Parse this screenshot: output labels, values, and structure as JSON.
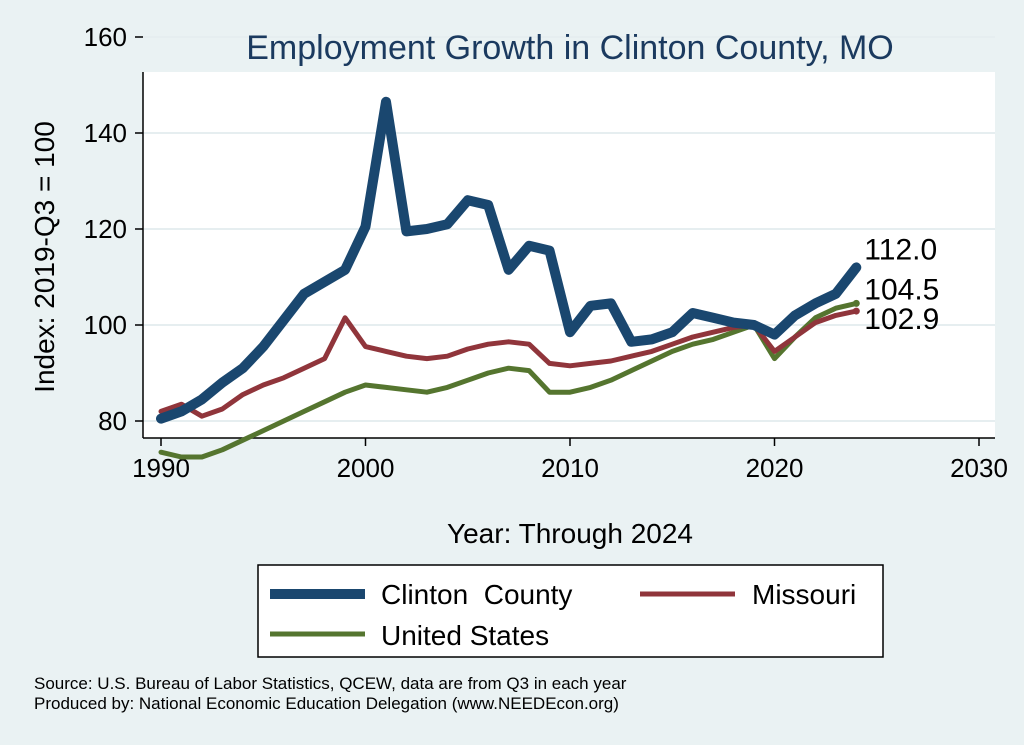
{
  "chart_data": {
    "type": "line",
    "title": "Employment Growth in Clinton County, MO",
    "xlabel": "Year: Through 2024",
    "ylabel": "Index: 2019-Q3 = 100",
    "xlim": [
      1990,
      2030
    ],
    "ylim": [
      70,
      165
    ],
    "x_ticks": [
      1990,
      2000,
      2010,
      2020,
      2030
    ],
    "y_ticks": [
      80,
      100,
      120,
      140,
      160
    ],
    "grid": true,
    "legend_position": "bottom",
    "x": [
      1990,
      1991,
      1992,
      1993,
      1994,
      1995,
      1996,
      1997,
      1998,
      1999,
      2000,
      2001,
      2002,
      2003,
      2004,
      2005,
      2006,
      2007,
      2008,
      2009,
      2010,
      2011,
      2012,
      2013,
      2014,
      2015,
      2016,
      2017,
      2018,
      2019,
      2020,
      2021,
      2022,
      2023,
      2024
    ],
    "series": [
      {
        "name": "Clinton  County",
        "color": "#1a476f",
        "end_label": "112.0",
        "values": [
          80.5,
          82.0,
          84.5,
          88.0,
          91.0,
          95.5,
          101.0,
          106.5,
          109.0,
          111.5,
          120.5,
          146.5,
          119.5,
          120.0,
          121.0,
          126.0,
          125.0,
          111.5,
          116.5,
          115.5,
          98.5,
          104.0,
          104.5,
          96.5,
          97.0,
          98.5,
          102.5,
          101.5,
          100.5,
          100.0,
          98.0,
          102.0,
          104.5,
          106.5,
          112.0
        ]
      },
      {
        "name": "Missouri",
        "color": "#90353b",
        "end_label": "102.9",
        "values": [
          82.0,
          83.5,
          81.0,
          82.5,
          85.5,
          87.5,
          89.0,
          91.0,
          93.0,
          101.5,
          95.5,
          94.5,
          93.5,
          93.0,
          93.5,
          95.0,
          96.0,
          96.5,
          96.0,
          92.0,
          91.5,
          92.0,
          92.5,
          93.5,
          94.5,
          96.0,
          97.5,
          98.5,
          99.5,
          100.0,
          94.5,
          97.5,
          100.5,
          102.0,
          102.9
        ]
      },
      {
        "name": "United States",
        "color": "#55752f",
        "end_label": "104.5",
        "values": [
          73.5,
          72.5,
          72.5,
          74.0,
          76.0,
          78.0,
          80.0,
          82.0,
          84.0,
          86.0,
          87.5,
          87.0,
          86.5,
          86.0,
          87.0,
          88.5,
          90.0,
          91.0,
          90.5,
          86.0,
          86.0,
          87.0,
          88.5,
          90.5,
          92.5,
          94.5,
          96.0,
          97.0,
          98.5,
          100.0,
          93.0,
          97.5,
          101.5,
          103.5,
          104.5
        ]
      }
    ],
    "legend_entries": [
      "Clinton  County",
      "Missouri",
      "United States"
    ],
    "source_lines": [
      "Source: U.S. Bureau of Labor Statistics, QCEW, data are from Q3 in each year",
      "Produced by: National Economic Education Delegation (www.NEEDEcon.org)"
    ]
  }
}
